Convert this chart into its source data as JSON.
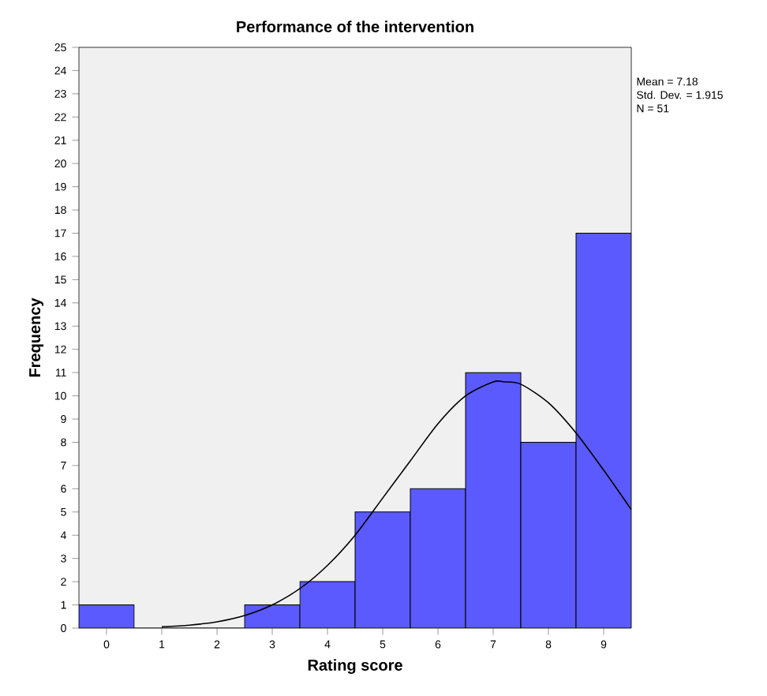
{
  "chart_data": {
    "type": "histogram",
    "title": "Performance of the intervention",
    "xlabel": "Rating score",
    "ylabel": "Frequency",
    "bins": [
      -0.5,
      0.5,
      1.5,
      2.5,
      3.5,
      4.5,
      5.5,
      6.5,
      7.5,
      8.5,
      9.5
    ],
    "values": [
      1,
      0,
      0,
      1,
      2,
      5,
      6,
      11,
      8,
      17
    ],
    "color": "#5a5aff",
    "xlim": [
      -0.5,
      9.5
    ],
    "xticks": [
      0,
      1,
      2,
      3,
      4,
      5,
      6,
      7,
      8,
      9
    ],
    "ylim": [
      0,
      25
    ],
    "yticks": [
      0,
      1,
      2,
      3,
      4,
      5,
      6,
      7,
      8,
      9,
      10,
      11,
      12,
      13,
      14,
      15,
      16,
      17,
      18,
      19,
      20,
      21,
      22,
      23,
      24,
      25
    ],
    "annotations": [
      "Mean = 7.18",
      "Std. Dev. = 1.915",
      "N = 51"
    ],
    "series": [
      {
        "type": "line",
        "color": "#000000",
        "x": [
          1,
          1.5,
          2,
          2.5,
          3,
          3.5,
          4,
          4.5,
          5,
          5.5,
          6,
          6.5,
          7,
          7.2,
          7.5,
          8,
          8.5,
          9,
          9.5
        ],
        "values": [
          0.06,
          0.13,
          0.27,
          0.54,
          1,
          1.7,
          2.7,
          4,
          5.6,
          7.2,
          8.8,
          10,
          10.6,
          10.6,
          10.5,
          9.7,
          8.4,
          6.8,
          5.1
        ]
      }
    ]
  }
}
